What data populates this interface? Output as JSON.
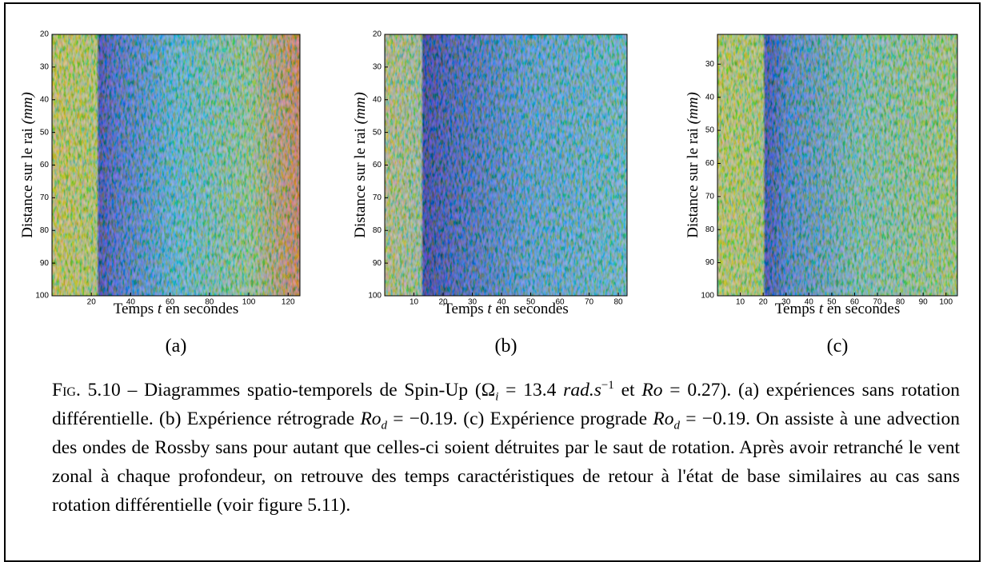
{
  "panels": [
    {
      "label": "(a)",
      "y_label": {
        "text": "Distance sur le rai",
        "unit": "(mm)"
      },
      "x_label": {
        "before": "Temps",
        "var": "t",
        "after": "en secondes"
      },
      "xlim": [
        0,
        126
      ],
      "xticks": [
        20,
        40,
        60,
        80,
        100,
        120
      ],
      "ylim": [
        20,
        100
      ],
      "yticks": [
        20,
        30,
        40,
        50,
        60,
        70,
        80,
        90,
        100
      ],
      "y_reversed": true
    },
    {
      "label": "(b)",
      "y_label": {
        "text": "Distance sur le rai",
        "unit": "(mm)"
      },
      "x_label": {
        "before": "Temps",
        "var": "t",
        "after": "en secondes"
      },
      "xlim": [
        0,
        83
      ],
      "xticks": [
        10,
        20,
        30,
        40,
        50,
        60,
        70,
        80
      ],
      "ylim": [
        20,
        100
      ],
      "yticks": [
        20,
        30,
        40,
        50,
        60,
        70,
        80,
        90,
        100
      ],
      "y_reversed": true
    },
    {
      "label": "(c)",
      "y_label": {
        "text": "Distance sur le rai",
        "unit": "(mm)"
      },
      "x_label": {
        "before": "Temps",
        "var": "t",
        "after": "en secondes"
      },
      "xlim": [
        0,
        105
      ],
      "xticks": [
        10,
        20,
        30,
        40,
        50,
        60,
        70,
        80,
        90,
        100
      ],
      "ylim": [
        21,
        100
      ],
      "yticks": [
        30,
        40,
        50,
        60,
        70,
        80,
        90,
        100
      ],
      "y_reversed": true
    }
  ],
  "caption": [
    {
      "style": "sc",
      "text": "Fig. 5.10"
    },
    {
      "style": "rm",
      "text": " – Diagrammes spatio-temporels de Spin-Up ("
    },
    {
      "style": "rm",
      "text": "Ω"
    },
    {
      "style": "sub",
      "text": "i"
    },
    {
      "style": "rm",
      "text": " = 13.4 "
    },
    {
      "style": "it",
      "text": "rad.s"
    },
    {
      "style": "sup",
      "text": "−1"
    },
    {
      "style": "rm",
      "text": " et "
    },
    {
      "style": "it",
      "text": "Ro"
    },
    {
      "style": "rm",
      "text": " = 0.27). (a) expériences sans rotation différentielle. (b) Expérience rétrograde "
    },
    {
      "style": "it",
      "text": "Ro"
    },
    {
      "style": "sub",
      "text": "d"
    },
    {
      "style": "rm",
      "text": " = −0.19. (c) Expérience prograde "
    },
    {
      "style": "it",
      "text": "Ro"
    },
    {
      "style": "sub",
      "text": "d"
    },
    {
      "style": "rm",
      "text": " = −0.19. On assiste à une advection des ondes de Rossby sans pour autant que celles-ci soient détruites par le saut de rotation. Après avoir retranché le vent zonal à chaque profondeur, on retrouve des temps caractéristiques de retour à l'état de base similaires au cas sans rotation différentielle (voir figure 5.11)."
    }
  ]
}
